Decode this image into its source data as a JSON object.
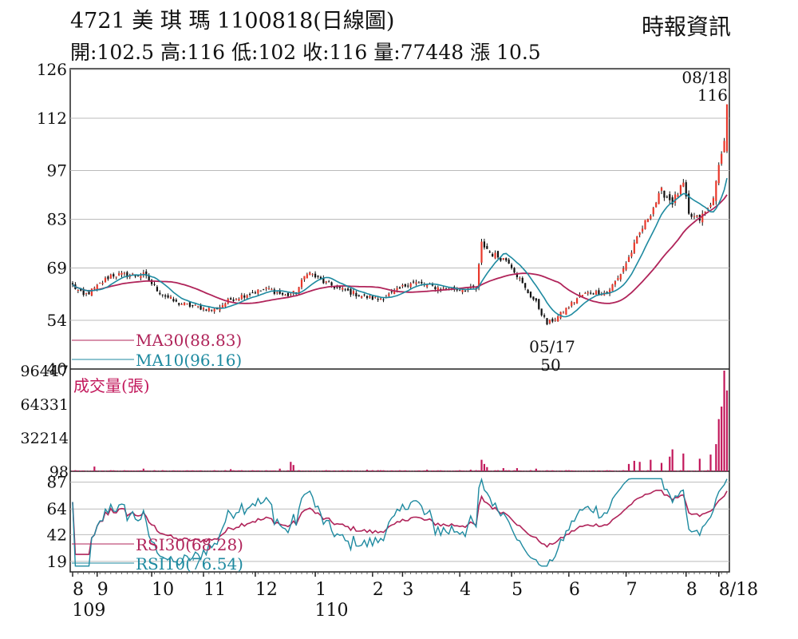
{
  "header": {
    "title": "4721  美 琪 瑪 1100818(日線圖)",
    "quote": "開:102.5 高:116 低:102 收:116 量:77448 漲 10.5",
    "source": "時報資訊"
  },
  "colors": {
    "up": "#e8382b",
    "down": "#111111",
    "ma30": "#b0245a",
    "ma10": "#1e8aa0",
    "volume": "#c2185b",
    "rsi30": "#b0245a",
    "rsi10": "#1e8aa0",
    "grid": "#bbbbbb"
  },
  "chart_data": [
    {
      "type": "candlestick",
      "panel": "price",
      "yticks": [
        40,
        54,
        69,
        83,
        97,
        112,
        126
      ],
      "ylim": [
        40,
        126
      ],
      "annotations": [
        {
          "label": "08/18",
          "value": "116",
          "at": "high"
        },
        {
          "label": "05/17",
          "value": "50",
          "at": "low"
        }
      ],
      "legend": [
        "MA30(88.83)",
        "MA10(96.16)"
      ],
      "series": [
        {
          "name": "MA30(88.83)",
          "values_approx": "30-day moving average of close"
        },
        {
          "name": "MA10(96.16)",
          "values_approx": "10-day moving average of close"
        }
      ],
      "price_path_anchors": [
        [
          0,
          64
        ],
        [
          4,
          61
        ],
        [
          8,
          63
        ],
        [
          14,
          67
        ],
        [
          20,
          67
        ],
        [
          26,
          67
        ],
        [
          32,
          62
        ],
        [
          38,
          59
        ],
        [
          44,
          58
        ],
        [
          52,
          57
        ],
        [
          58,
          60
        ],
        [
          66,
          62
        ],
        [
          72,
          63
        ],
        [
          78,
          61
        ],
        [
          82,
          62
        ],
        [
          86,
          68
        ],
        [
          92,
          65
        ],
        [
          98,
          63
        ],
        [
          106,
          61
        ],
        [
          112,
          60
        ],
        [
          118,
          62
        ],
        [
          124,
          65
        ],
        [
          130,
          64
        ],
        [
          136,
          63
        ],
        [
          142,
          63
        ],
        [
          148,
          63
        ],
        [
          150,
          76
        ],
        [
          154,
          73
        ],
        [
          160,
          71
        ],
        [
          166,
          63
        ],
        [
          170,
          59
        ],
        [
          174,
          53
        ],
        [
          178,
          55
        ],
        [
          182,
          58
        ],
        [
          186,
          61
        ],
        [
          190,
          62
        ],
        [
          196,
          62
        ],
        [
          200,
          66
        ],
        [
          204,
          72
        ],
        [
          208,
          79
        ],
        [
          212,
          85
        ],
        [
          216,
          91
        ],
        [
          220,
          88
        ],
        [
          224,
          93
        ],
        [
          226,
          84
        ],
        [
          230,
          83
        ],
        [
          234,
          87
        ],
        [
          236,
          93
        ],
        [
          238,
          103
        ],
        [
          240,
          112
        ]
      ],
      "last": {
        "open": 102.5,
        "high": 116,
        "low": 102,
        "close": 116
      }
    },
    {
      "type": "bar",
      "panel": "volume",
      "title": "成交量(張)",
      "yticks": [
        98,
        32214,
        64331,
        96447
      ],
      "ylim": [
        0,
        96447
      ],
      "spikes": [
        {
          "day": 8,
          "value": 4500
        },
        {
          "day": 26,
          "value": 2500
        },
        {
          "day": 58,
          "value": 2000
        },
        {
          "day": 76,
          "value": 2500
        },
        {
          "day": 80,
          "value": 9000
        },
        {
          "day": 81,
          "value": 6000
        },
        {
          "day": 108,
          "value": 1500
        },
        {
          "day": 130,
          "value": 1500
        },
        {
          "day": 146,
          "value": 1500
        },
        {
          "day": 150,
          "value": 11000
        },
        {
          "day": 151,
          "value": 7000
        },
        {
          "day": 152,
          "value": 4000
        },
        {
          "day": 158,
          "value": 3000
        },
        {
          "day": 163,
          "value": 3000
        },
        {
          "day": 170,
          "value": 2500
        },
        {
          "day": 204,
          "value": 7000
        },
        {
          "day": 206,
          "value": 10000
        },
        {
          "day": 208,
          "value": 9000
        },
        {
          "day": 212,
          "value": 11000
        },
        {
          "day": 216,
          "value": 8000
        },
        {
          "day": 219,
          "value": 14000
        },
        {
          "day": 220,
          "value": 21000
        },
        {
          "day": 224,
          "value": 17000
        },
        {
          "day": 230,
          "value": 12000
        },
        {
          "day": 234,
          "value": 16000
        },
        {
          "day": 236,
          "value": 26000
        },
        {
          "day": 237,
          "value": 50000
        },
        {
          "day": 238,
          "value": 62000
        },
        {
          "day": 239,
          "value": 96447
        },
        {
          "day": 240,
          "value": 77448
        }
      ]
    },
    {
      "type": "line",
      "panel": "rsi",
      "yticks": [
        19,
        42,
        64,
        87
      ],
      "ylim": [
        10,
        95
      ],
      "legend": [
        "RSI30(68.28)",
        "RSI10(76.54)"
      ],
      "series": [
        {
          "name": "RSI30(68.28)",
          "values_approx": "30-day RSI"
        },
        {
          "name": "RSI10(76.54)",
          "values_approx": "10-day RSI"
        }
      ]
    }
  ],
  "x_axis": {
    "month_labels": [
      {
        "label": "8",
        "day": 0
      },
      {
        "label": "9",
        "day": 9
      },
      {
        "label": "10",
        "day": 29
      },
      {
        "label": "11",
        "day": 48
      },
      {
        "label": "12",
        "day": 67
      },
      {
        "label": "1",
        "day": 89
      },
      {
        "label": "2",
        "day": 110
      },
      {
        "label": "3",
        "day": 121
      },
      {
        "label": "4",
        "day": 142
      },
      {
        "label": "5",
        "day": 161
      },
      {
        "label": "6",
        "day": 182
      },
      {
        "label": "7",
        "day": 203
      },
      {
        "label": "8",
        "day": 225
      },
      {
        "label": "8/18",
        "day": 237
      }
    ],
    "year_labels": [
      {
        "label": "109",
        "day": 1
      },
      {
        "label": "110",
        "day": 90
      }
    ]
  }
}
